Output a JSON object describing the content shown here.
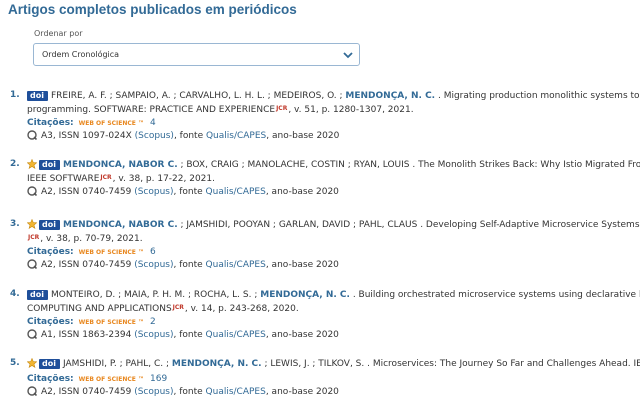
{
  "header": {
    "title": "Artigos completos publicados em periódicos"
  },
  "sort": {
    "label": "Ordenar por",
    "selected": "Ordem Cronológica"
  },
  "articles": [
    {
      "number": "1.",
      "doi": "doi",
      "line1": {
        "pre": "FREIRE, A. F. ; SAMPAIO, A. ; CARVALHO, L. H. L. ; MEDEIROS, O. ; ",
        "bold": "MENDONÇA, N. C.",
        "post": " . Migrating production monolithic systems to microservices using"
      },
      "line2": {
        "text": "programming. SOFTWARE: PRACTICE AND EXPERIENCE",
        "jcr": "JCR",
        "after": ", v. 51, p. 1280-1307, 2021."
      },
      "citations": {
        "label": "Citações:",
        "source": "WEB OF SCIENCE ™",
        "count": "4"
      },
      "meta": {
        "pre": "A3, ISSN 1097-024X ",
        "scopus": "(Scopus)",
        "mid": ", fonte ",
        "qualis": "Qualis/CAPES",
        "post": ", ano-base 2020"
      }
    },
    {
      "number": "2.",
      "starred": true,
      "doi": "doi",
      "line1": {
        "bold": "MENDONCA, NABOR C.",
        "post": " ; BOX, CRAIG ; MANOLACHE, COSTIN ; RYAN, LOUIS . The Monolith Strikes Back: Why Istio Migrated From Microservices"
      },
      "line2": {
        "text": "IEEE SOFTWARE",
        "jcr": "JCR",
        "after": ", v. 38, p. 17-22, 2021."
      },
      "meta": {
        "pre": "A2, ISSN 0740-7459 ",
        "scopus": "(Scopus)",
        "mid": ", fonte ",
        "qualis": "Qualis/CAPES",
        "post": ", ano-base 2020"
      }
    },
    {
      "number": "3.",
      "starred": true,
      "doi": "doi",
      "line1": {
        "bold": "MENDONCA, NABOR C.",
        "post": " ; JAMSHIDI, POOYAN ; GARLAN, DAVID ; PAHL, CLAUS . Developing Self-Adaptive Microservice Systems: Challenges and Di"
      },
      "line2": {
        "jcr": "JCR",
        "after": ", v. 38, p. 70-79, 2021."
      },
      "citations": {
        "label": "Citações:",
        "source": "WEB OF SCIENCE ™",
        "count": "6"
      },
      "meta": {
        "pre": "A2, ISSN 0740-7459 ",
        "scopus": "(Scopus)",
        "mid": ", fonte ",
        "qualis": "Qualis/CAPES",
        "post": ", ano-base 2020"
      }
    },
    {
      "number": "4.",
      "doi": "doi",
      "line1": {
        "pre": "MONTEIRO, D. ; MAIA, P. H. M. ; ROCHA, L. S. ; ",
        "bold": "MENDONÇA, N. C.",
        "post": " . Building orchestrated microservice systems using declarative business processes"
      },
      "line2": {
        "text": "COMPUTING AND APPLICATIONS",
        "jcr": "JCR",
        "after": ", v. 14, p. 243-268, 2020."
      },
      "citations": {
        "label": "Citações:",
        "source": "WEB OF SCIENCE ™",
        "count": "2"
      },
      "meta": {
        "pre": "A1, ISSN 1863-2394 ",
        "scopus": "(Scopus)",
        "mid": ", fonte ",
        "qualis": "Qualis/CAPES",
        "post": ", ano-base 2020"
      }
    },
    {
      "number": "5.",
      "starred": true,
      "doi": "doi",
      "line1": {
        "pre": "JAMSHIDI, P. ; PAHL, C. ; ",
        "bold": "MENDONÇA, N. C.",
        "post": " ; LEWIS, J. ; TILKOV, S. . Microservices: The Journey So Far and Challenges Ahead. IEEE SOFTWARE"
      },
      "citations": {
        "label": "Citações:",
        "source": "WEB OF SCIENCE ™",
        "count": "169"
      },
      "meta": {
        "pre": "A2, ISSN 0740-7459 ",
        "scopus": "(Scopus)",
        "mid": ", fonte ",
        "qualis": "Qualis/CAPES",
        "post": ", ano-base 2020"
      }
    }
  ]
}
